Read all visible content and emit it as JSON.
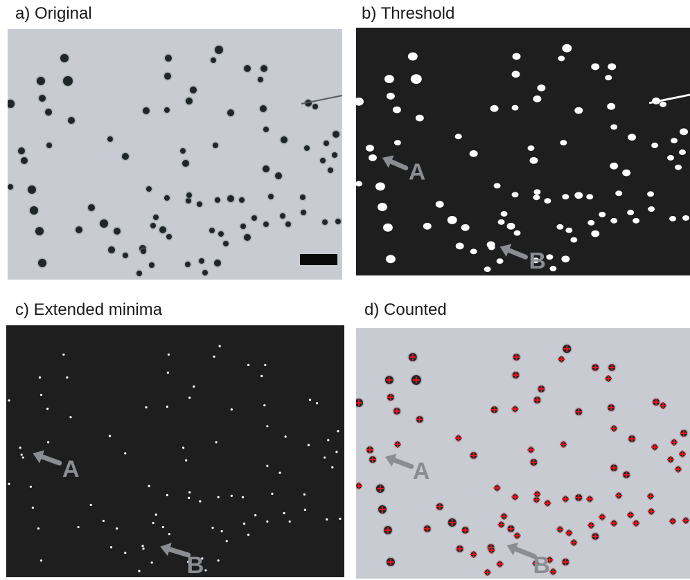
{
  "panels": [
    {
      "id": "a",
      "label": "a) Original",
      "style": "micrograph"
    },
    {
      "id": "b",
      "label": "b) Threshold",
      "style": "binary"
    },
    {
      "id": "c",
      "label": "c) Extended minima",
      "style": "minima"
    },
    {
      "id": "d",
      "label": "d) Counted",
      "style": "counted"
    }
  ],
  "annotations": {
    "arrow_a": "A",
    "arrow_b": "B"
  },
  "colors": {
    "micrograph_bg": "#c8ccd2",
    "particle_dark": "#1f2628",
    "binary_bg": "#1e1e1e",
    "binary_fg": "#ffffff",
    "arrow_gray": "#8a8d91",
    "count_mark": "#e8141c"
  }
}
